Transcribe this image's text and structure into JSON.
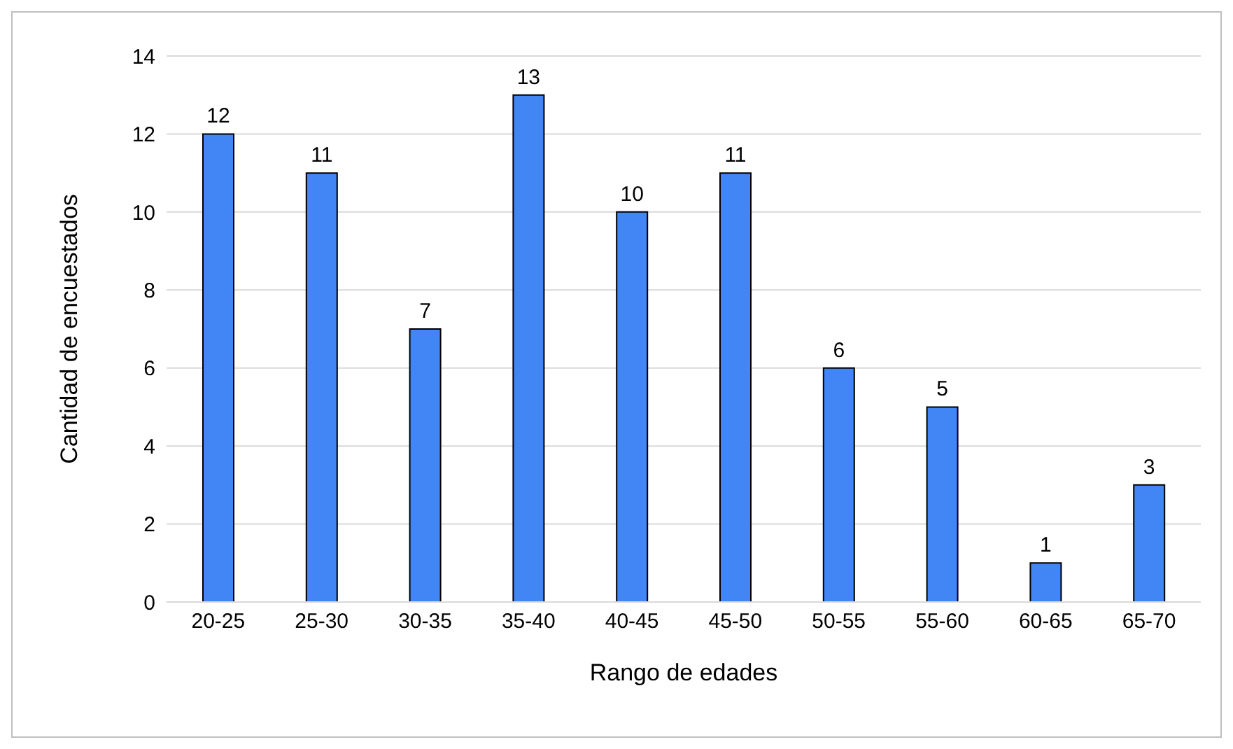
{
  "chart_data": {
    "type": "bar",
    "xlabel": "Rango de edades",
    "ylabel": "Cantidad de encuestados",
    "categories": [
      "20-25",
      "25-30",
      "30-35",
      "35-40",
      "40-45",
      "45-50",
      "50-55",
      "55-60",
      "60-65",
      "65-70"
    ],
    "values": [
      12,
      11,
      7,
      13,
      10,
      11,
      6,
      5,
      1,
      3
    ],
    "color": "#4285f4",
    "ylim": [
      0,
      14
    ],
    "yticks": [
      0,
      2,
      4,
      6,
      8,
      10,
      12,
      14
    ],
    "grid": "y",
    "data_labels": true
  }
}
